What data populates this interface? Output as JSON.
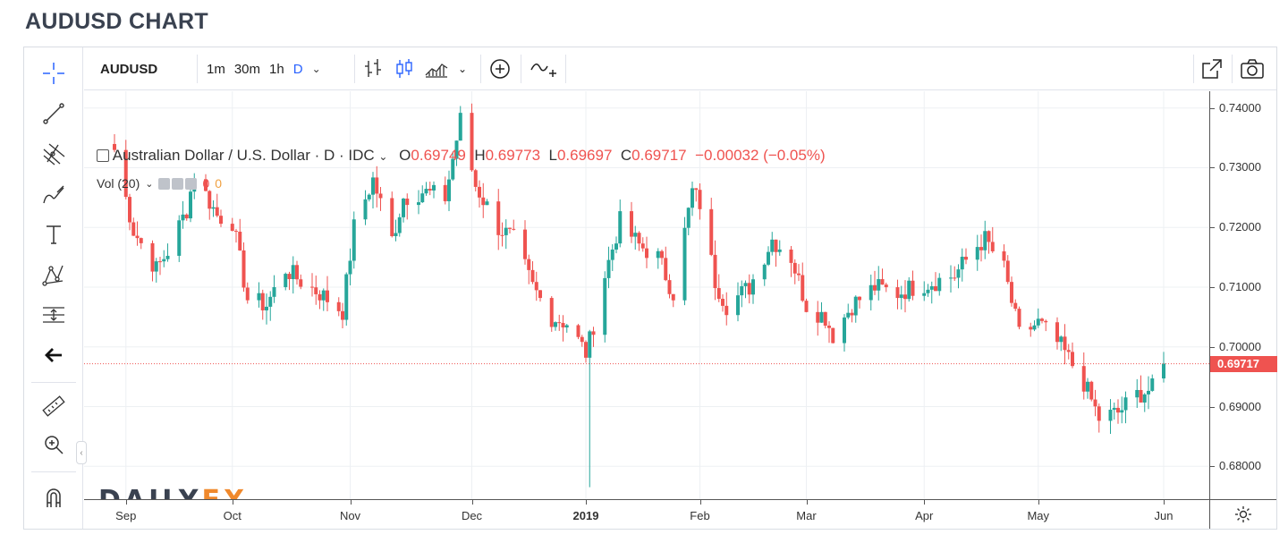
{
  "page_title": "AUDUSD CHART",
  "toolbar": {
    "symbol": "AUDUSD",
    "intervals": [
      "1m",
      "30m",
      "1h",
      "D"
    ],
    "active_interval": "D"
  },
  "legend": {
    "name": "Australian Dollar / U.S. Dollar · D · IDC",
    "open_label": "O",
    "open": "0.69749",
    "high_label": "H",
    "high": "0.69773",
    "low_label": "L",
    "low": "0.69697",
    "close_label": "C",
    "close": "0.69717",
    "change": "−0.00032 (−0.05%)"
  },
  "volume": {
    "label": "Vol (20)",
    "value1": "0",
    "value2": "0"
  },
  "logo": {
    "daily": "DAILY",
    "fx": "FX"
  },
  "colors": {
    "up": "#26a69a",
    "down": "#ef5350",
    "accent": "#2962ff",
    "logo_orange": "#f0892c"
  },
  "icons": [
    "crosshair-icon",
    "trend-line-icon",
    "pitchfork-icon",
    "brush-icon",
    "text-icon",
    "pattern-icon",
    "forecast-icon",
    "back-arrow-icon",
    "ruler-icon",
    "zoom-in-icon",
    "magnet-icon",
    "bar-style-icon",
    "candle-style-icon",
    "area-style-icon",
    "indicator-icon",
    "compare-icon",
    "popout-icon",
    "camera-icon",
    "settings-icon"
  ],
  "chart_data": {
    "type": "candlestick",
    "title": "Australian Dollar / U.S. Dollar · D · IDC",
    "y_ticks": [
      "0.74000",
      "0.73000",
      "0.72000",
      "0.71000",
      "0.70000",
      "0.69000",
      "0.68000"
    ],
    "ylim": [
      0.6745,
      0.7428
    ],
    "x_ticks": [
      "Sep",
      "Oct",
      "Nov",
      "Dec",
      "2019",
      "Feb",
      "Mar",
      "Apr",
      "May",
      "Jun"
    ],
    "last_price": "0.69717",
    "approx_close_path": [
      [
        "2018-08-31",
        0.733
      ],
      [
        "2018-09-05",
        0.7195
      ],
      [
        "2018-09-11",
        0.713
      ],
      [
        "2018-09-14",
        0.716
      ],
      [
        "2018-09-19",
        0.723
      ],
      [
        "2018-09-21",
        0.729
      ],
      [
        "2018-09-27",
        0.722
      ],
      [
        "2018-10-01",
        0.721
      ],
      [
        "2018-10-05",
        0.708
      ],
      [
        "2018-10-10",
        0.707
      ],
      [
        "2018-10-15",
        0.713
      ],
      [
        "2018-10-19",
        0.711
      ],
      [
        "2018-10-24",
        0.709
      ],
      [
        "2018-10-30",
        0.706
      ],
      [
        "2018-11-02",
        0.72
      ],
      [
        "2018-11-07",
        0.728
      ],
      [
        "2018-11-12",
        0.718
      ],
      [
        "2018-11-15",
        0.725
      ],
      [
        "2018-11-20",
        0.726
      ],
      [
        "2018-11-26",
        0.725
      ],
      [
        "2018-11-30",
        0.738
      ],
      [
        "2018-12-04",
        0.727
      ],
      [
        "2018-12-10",
        0.72
      ],
      [
        "2018-12-14",
        0.718
      ],
      [
        "2018-12-19",
        0.71
      ],
      [
        "2018-12-24",
        0.705
      ],
      [
        "2018-12-28",
        0.704
      ],
      [
        "2019-01-02",
        0.699
      ],
      [
        "2019-01-03",
        0.701
      ],
      [
        "2019-01-07",
        0.712
      ],
      [
        "2019-01-11",
        0.721
      ],
      [
        "2019-01-16",
        0.717
      ],
      [
        "2019-01-21",
        0.715
      ],
      [
        "2019-01-25",
        0.709
      ],
      [
        "2019-01-30",
        0.726
      ],
      [
        "2019-02-01",
        0.724
      ],
      [
        "2019-02-05",
        0.711
      ],
      [
        "2019-02-08",
        0.707
      ],
      [
        "2019-02-14",
        0.71
      ],
      [
        "2019-02-20",
        0.718
      ],
      [
        "2019-02-25",
        0.715
      ],
      [
        "2019-03-01",
        0.707
      ],
      [
        "2019-03-06",
        0.705
      ],
      [
        "2019-03-08",
        0.702
      ],
      [
        "2019-03-13",
        0.707
      ],
      [
        "2019-03-19",
        0.71
      ],
      [
        "2019-03-25",
        0.709
      ],
      [
        "2019-03-29",
        0.71
      ],
      [
        "2019-04-04",
        0.711
      ],
      [
        "2019-04-09",
        0.712
      ],
      [
        "2019-04-15",
        0.717
      ],
      [
        "2019-04-17",
        0.718
      ],
      [
        "2019-04-22",
        0.713
      ],
      [
        "2019-04-26",
        0.702
      ],
      [
        "2019-05-01",
        0.704
      ],
      [
        "2019-05-07",
        0.7
      ],
      [
        "2019-05-13",
        0.694
      ],
      [
        "2019-05-17",
        0.688
      ],
      [
        "2019-05-22",
        0.689
      ],
      [
        "2019-05-27",
        0.692
      ],
      [
        "2019-05-31",
        0.693
      ],
      [
        "2019-06-03",
        0.6972
      ]
    ]
  }
}
